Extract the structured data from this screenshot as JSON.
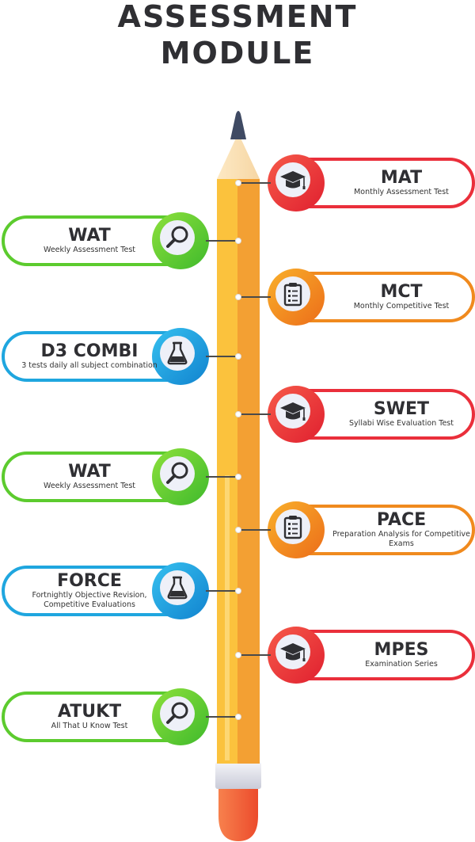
{
  "title": {
    "line1": "ASSESSMENT",
    "line2": "MODULE"
  },
  "colors": {
    "green": "#5ccb2e",
    "blue": "#1fa6df",
    "red": "#ea2f3b",
    "orange": "#f08a1e",
    "pencil_body": "#fbc23d",
    "pencil_shade": "#f3a033",
    "eraser": "#f0603a"
  },
  "items": [
    {
      "head": "MAT",
      "sub": "Monthly Assessment Test",
      "side": "right",
      "color": "red",
      "icon": "graduation-cap-icon"
    },
    {
      "head": "WAT",
      "sub": "Weekly Assessment Test",
      "side": "left",
      "color": "green",
      "icon": "magnifier-icon"
    },
    {
      "head": "MCT",
      "sub": "Monthly Competitive Test",
      "side": "right",
      "color": "orange",
      "icon": "clipboard-icon"
    },
    {
      "head": "D3 COMBI",
      "sub": "3 tests daily all subject combination",
      "side": "left",
      "color": "blue",
      "icon": "flask-icon"
    },
    {
      "head": "SWET",
      "sub": "Syllabi Wise Evaluation Test",
      "side": "right",
      "color": "red",
      "icon": "graduation-cap-icon"
    },
    {
      "head": "WAT",
      "sub": "Weekly Assessment Test",
      "side": "left",
      "color": "green",
      "icon": "magnifier-icon"
    },
    {
      "head": "PACE",
      "sub": "Preparation Analysis for Competitive Exams",
      "side": "right",
      "color": "orange",
      "icon": "clipboard-icon"
    },
    {
      "head": "FORCE",
      "sub": "Fortnightly Objective Revision, Competitive Evaluations",
      "side": "left",
      "color": "blue",
      "icon": "flask-icon"
    },
    {
      "head": "MPES",
      "sub": "Examination Series",
      "side": "right",
      "color": "red",
      "icon": "graduation-cap-icon"
    },
    {
      "head": "ATUKT",
      "sub": "All That U Know Test",
      "side": "left",
      "color": "green",
      "icon": "magnifier-icon"
    }
  ]
}
